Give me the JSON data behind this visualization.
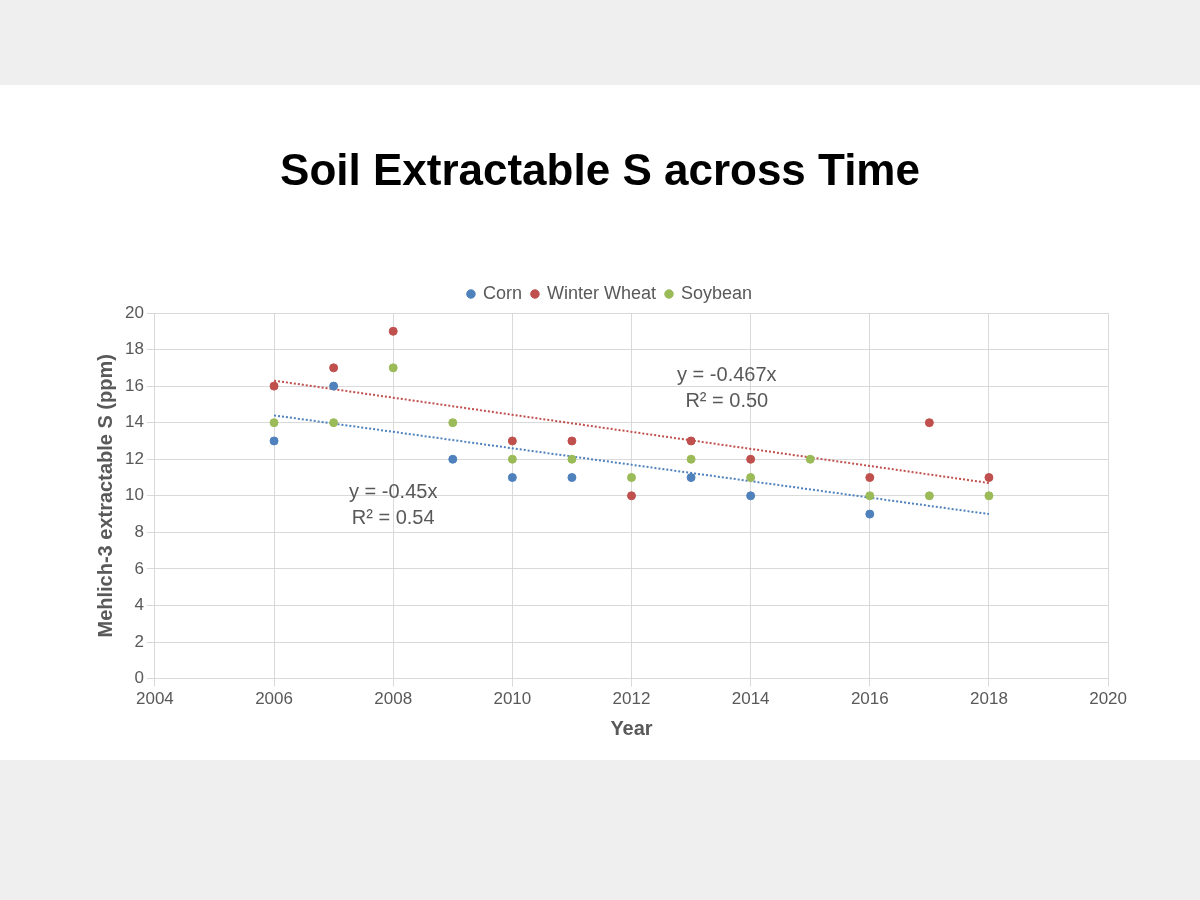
{
  "chart_data": {
    "type": "scatter",
    "title": "Soil Extractable S across Time",
    "xlabel": "Year",
    "ylabel": "Mehlich-3 extractable S (ppm)",
    "xlim": [
      2004,
      2020
    ],
    "xticks": [
      2004,
      2006,
      2008,
      2010,
      2012,
      2014,
      2016,
      2018,
      2020
    ],
    "ylim": [
      0,
      20
    ],
    "yticks": [
      0,
      2,
      4,
      6,
      8,
      10,
      12,
      14,
      16,
      18,
      20
    ],
    "grid": true,
    "legend": "top",
    "marker": "circle",
    "series": [
      {
        "name": "Corn",
        "color": "#4f81bd",
        "x": [
          2006,
          2007,
          2009,
          2010,
          2011,
          2013,
          2014,
          2016
        ],
        "values": [
          13,
          16,
          12,
          11,
          11,
          11,
          10,
          9
        ]
      },
      {
        "name": "Winter Wheat",
        "color": "#c0504d",
        "x": [
          2006,
          2007,
          2008,
          2010,
          2011,
          2012,
          2013,
          2014,
          2016,
          2017,
          2018
        ],
        "values": [
          16,
          17,
          19,
          13,
          13,
          10,
          13,
          12,
          11,
          14,
          11
        ]
      },
      {
        "name": "Soybean",
        "color": "#9bbb59",
        "x": [
          2006,
          2007,
          2008,
          2009,
          2010,
          2011,
          2012,
          2013,
          2014,
          2015,
          2016,
          2017,
          2018
        ],
        "values": [
          14,
          14,
          17,
          14,
          12,
          12,
          11,
          12,
          11,
          12,
          10,
          10,
          10
        ]
      },
      {
        "type": "line",
        "color": "#c0504d",
        "line_style": "dotted",
        "marker": "none",
        "x": [
          2006,
          2018
        ],
        "values": [
          16.3,
          10.7
        ]
      },
      {
        "type": "line",
        "color": "#4f81bd",
        "line_style": "dotted",
        "marker": "none",
        "x": [
          2006,
          2018
        ],
        "values": [
          14.4,
          9.0
        ]
      }
    ],
    "annotations": [
      "y = -0.467x\nR² = 0.50",
      "y = -0.45x\nR² = 0.54"
    ]
  }
}
